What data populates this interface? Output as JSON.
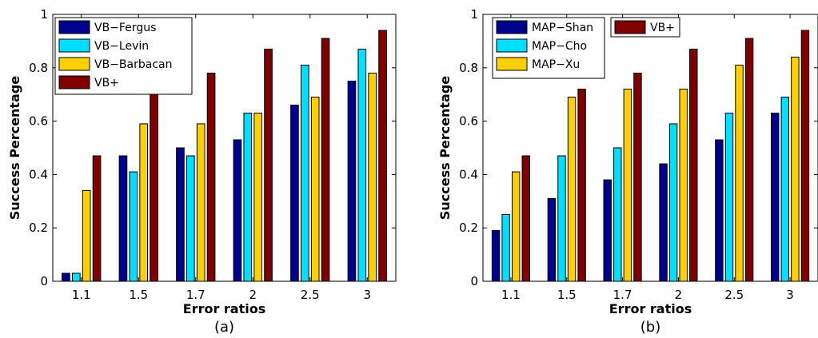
{
  "chart_data": [
    {
      "type": "bar",
      "caption": "(a)",
      "xlabel": "Error ratios",
      "ylabel": "Success Percentage",
      "categories": [
        "1.1",
        "1.5",
        "1.7",
        "2",
        "2.5",
        "3"
      ],
      "ylim": [
        0,
        1
      ],
      "yticks": [
        "0",
        "0.2",
        "0.4",
        "0.6",
        "0.8",
        "1"
      ],
      "legend_position": "top-left",
      "series": [
        {
          "name": "VB−Fergus",
          "color": "#00008f",
          "values": [
            0.03,
            0.47,
            0.5,
            0.53,
            0.66,
            0.75
          ]
        },
        {
          "name": "VB−Levin",
          "color": "#00dfff",
          "values": [
            0.03,
            0.41,
            0.47,
            0.63,
            0.81,
            0.87
          ]
        },
        {
          "name": "VB−Barbacan",
          "color": "#ffcf00",
          "values": [
            0.34,
            0.59,
            0.59,
            0.63,
            0.69,
            0.78
          ]
        },
        {
          "name": "VB+",
          "color": "#800000",
          "values": [
            0.47,
            0.72,
            0.78,
            0.87,
            0.91,
            0.94
          ]
        }
      ]
    },
    {
      "type": "bar",
      "caption": "(b)",
      "xlabel": "Error ratios",
      "ylabel": "Success Percentage",
      "categories": [
        "1.1",
        "1.5",
        "1.7",
        "2",
        "2.5",
        "3"
      ],
      "ylim": [
        0,
        1
      ],
      "yticks": [
        "0",
        "0.2",
        "0.4",
        "0.6",
        "0.8",
        "1"
      ],
      "legend_position": "top-left",
      "series": [
        {
          "name": "MAP−Shan",
          "color": "#00008f",
          "values": [
            0.19,
            0.31,
            0.38,
            0.44,
            0.53,
            0.63
          ]
        },
        {
          "name": "MAP−Cho",
          "color": "#00dfff",
          "values": [
            0.25,
            0.47,
            0.5,
            0.59,
            0.63,
            0.69
          ]
        },
        {
          "name": "MAP−Xu",
          "color": "#ffcf00",
          "values": [
            0.41,
            0.69,
            0.72,
            0.72,
            0.81,
            0.84
          ]
        },
        {
          "name": "VB+",
          "color": "#800000",
          "values": [
            0.47,
            0.72,
            0.78,
            0.87,
            0.91,
            0.94
          ]
        }
      ]
    }
  ]
}
